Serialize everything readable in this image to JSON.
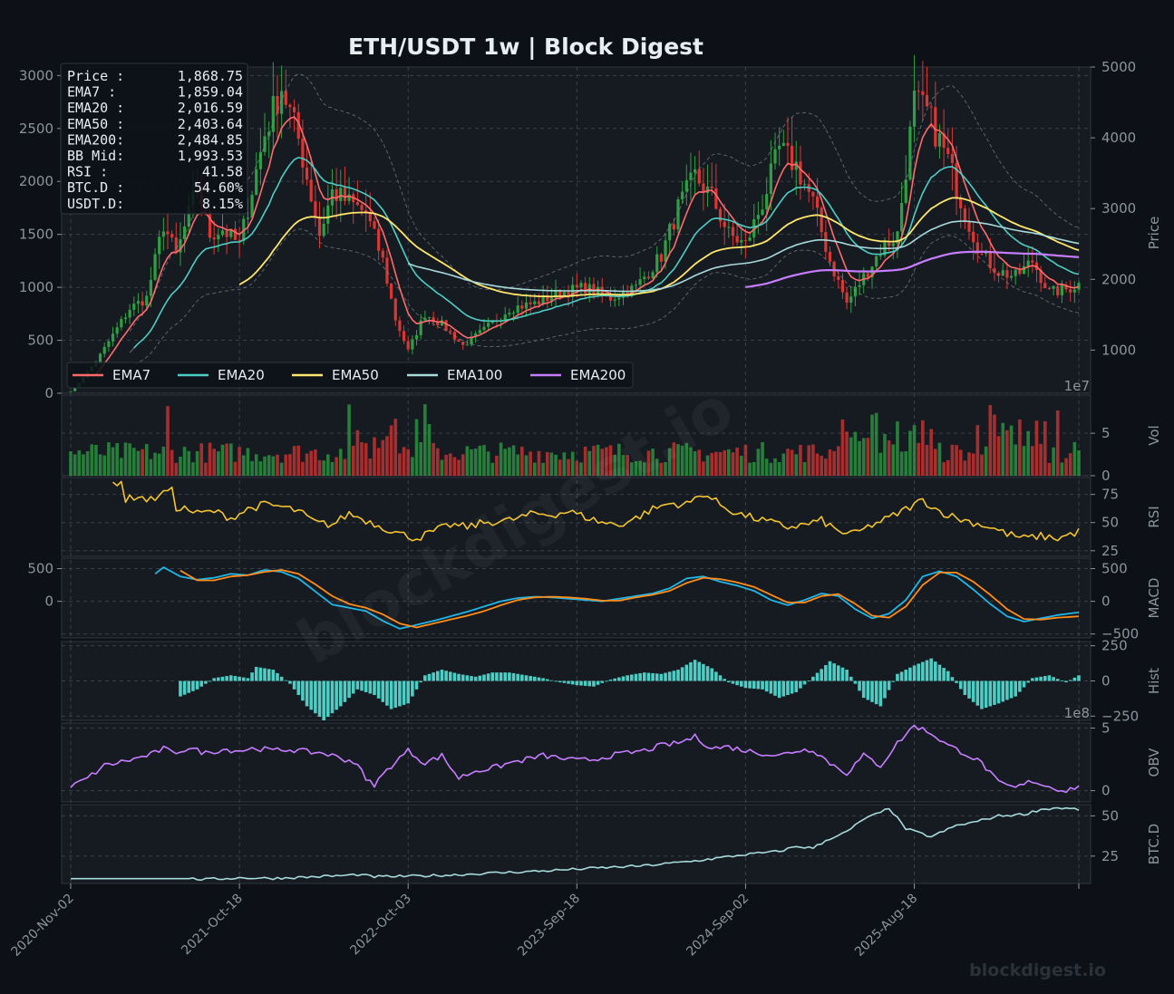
{
  "title": "ETH/USDT  1w  |  Block Digest",
  "watermark": "blockdigest.io",
  "footer_brand": "blockdigest.io",
  "colors": {
    "background": "#0d1117",
    "panel": "#161b22",
    "grid": "#3a4048",
    "text": "#e6edf3",
    "muted": "#8b949e",
    "up": "#2ea043",
    "down": "#da3633",
    "ema7": "#ff6b6b",
    "ema20": "#4ecdc4",
    "ema50": "#ffe66d",
    "ema100": "#a8dadc",
    "ema200": "#c77dff",
    "rsi": "#f4c430",
    "macd": "#1fb6e8",
    "signal": "#ff8c1a",
    "hist": "#4ecdc4",
    "obv": "#c77dff",
    "btcd": "#a8dadc"
  },
  "info_box": [
    {
      "label": "Price :",
      "value": "1,868.75"
    },
    {
      "label": "EMA7  :",
      "value": "1,859.04"
    },
    {
      "label": "EMA20 :",
      "value": "2,016.59"
    },
    {
      "label": "EMA50 :",
      "value": "2,403.64"
    },
    {
      "label": "EMA200:",
      "value": "2,484.85"
    },
    {
      "label": "BB Mid:",
      "value": "1,993.53"
    },
    {
      "label": "RSI   :",
      "value": "41.58"
    },
    {
      "label": "BTC.D :",
      "value": "54.60%"
    },
    {
      "label": "USDT.D:",
      "value": "8.15%"
    }
  ],
  "chart_data": {
    "type": "line",
    "x_ticks": [
      "2020-Nov-02",
      "2021-Oct-18",
      "2022-Oct-03",
      "2023-Sep-18",
      "2024-Sep-02",
      "2025-Aug-18"
    ],
    "legend": [
      "EMA7",
      "EMA20",
      "EMA50",
      "EMA100",
      "EMA200"
    ],
    "legend_position": "lower-left",
    "grid": true,
    "bars_total": 240,
    "panels": {
      "price": {
        "left_ticks": [
          0,
          500,
          1000,
          1500,
          2000,
          2500,
          3000
        ],
        "left_range": [
          0,
          3080
        ],
        "right_label": "Price",
        "right_ticks": [
          1000,
          2000,
          3000,
          4000,
          5000
        ],
        "right_range": [
          390,
          5000
        ],
        "exponent_label": "1e7"
      },
      "volume": {
        "label": "Vol",
        "ticks": [
          0,
          5
        ],
        "range": [
          0,
          9.5
        ],
        "unit_note": "1e7"
      },
      "rsi": {
        "label": "RSI",
        "ticks": [
          25,
          50,
          75
        ],
        "range": [
          20,
          90
        ]
      },
      "macd": {
        "label": "MACD",
        "left_ticks": [
          0,
          500
        ],
        "right_ticks": [
          -500,
          0,
          500
        ],
        "range": [
          -560,
          660
        ]
      },
      "hist": {
        "label": "Hist",
        "ticks": [
          -250,
          0,
          250
        ],
        "range": [
          -280,
          280
        ],
        "exponent_label": "1e8"
      },
      "obv": {
        "label": "OBV",
        "ticks": [
          0,
          5
        ],
        "range": [
          -0.9,
          5.4
        ]
      },
      "btcd": {
        "label": "BTC.D",
        "ticks": [
          25,
          50
        ],
        "range": [
          8,
          57
        ]
      }
    },
    "price_anchors": [
      [
        0,
        0
      ],
      [
        6,
        300
      ],
      [
        14,
        800
      ],
      [
        18,
        900
      ],
      [
        22,
        1600
      ],
      [
        25,
        1300
      ],
      [
        30,
        1950
      ],
      [
        33,
        1500
      ],
      [
        36,
        1550
      ],
      [
        40,
        1400
      ],
      [
        46,
        2450
      ],
      [
        50,
        2900
      ],
      [
        54,
        2400
      ],
      [
        59,
        1500
      ],
      [
        62,
        1900
      ],
      [
        66,
        1800
      ],
      [
        70,
        1700
      ],
      [
        74,
        1250
      ],
      [
        77,
        700
      ],
      [
        80,
        400
      ],
      [
        84,
        750
      ],
      [
        88,
        650
      ],
      [
        93,
        450
      ],
      [
        98,
        600
      ],
      [
        104,
        800
      ],
      [
        110,
        850
      ],
      [
        116,
        950
      ],
      [
        122,
        1000
      ],
      [
        128,
        900
      ],
      [
        134,
        1000
      ],
      [
        140,
        1300
      ],
      [
        144,
        1750
      ],
      [
        148,
        2050
      ],
      [
        152,
        1850
      ],
      [
        156,
        1500
      ],
      [
        160,
        1400
      ],
      [
        164,
        1800
      ],
      [
        168,
        2300
      ],
      [
        172,
        2150
      ],
      [
        176,
        1800
      ],
      [
        180,
        1250
      ],
      [
        184,
        850
      ],
      [
        188,
        1100
      ],
      [
        192,
        1350
      ],
      [
        196,
        1500
      ],
      [
        200,
        2750
      ],
      [
        203,
        2650
      ],
      [
        208,
        2200
      ],
      [
        212,
        1700
      ],
      [
        216,
        1300
      ],
      [
        220,
        1150
      ],
      [
        224,
        1100
      ],
      [
        228,
        1250
      ],
      [
        232,
        950
      ],
      [
        236,
        980
      ],
      [
        239,
        1030
      ]
    ],
    "rsi_anchors": [
      [
        10,
        85
      ],
      [
        12,
        87
      ],
      [
        13,
        70
      ],
      [
        16,
        74
      ],
      [
        18,
        70
      ],
      [
        22,
        76
      ],
      [
        24,
        78
      ],
      [
        21,
        76
      ],
      [
        20,
        72
      ],
      [
        19,
        70
      ],
      [
        20,
        74
      ],
      [
        21,
        80
      ],
      [
        22,
        82
      ],
      [
        23,
        79
      ],
      [
        24,
        60
      ],
      [
        26,
        64
      ],
      [
        30,
        58
      ],
      [
        34,
        60
      ],
      [
        38,
        54
      ],
      [
        42,
        62
      ],
      [
        46,
        66
      ],
      [
        50,
        64
      ],
      [
        54,
        60
      ],
      [
        58,
        50
      ],
      [
        62,
        48
      ],
      [
        66,
        58
      ],
      [
        70,
        52
      ],
      [
        74,
        46
      ],
      [
        78,
        40
      ],
      [
        82,
        36
      ],
      [
        86,
        42
      ],
      [
        90,
        48
      ],
      [
        94,
        46
      ],
      [
        98,
        50
      ],
      [
        104,
        52
      ],
      [
        110,
        58
      ],
      [
        114,
        57
      ],
      [
        118,
        60
      ],
      [
        122,
        55
      ],
      [
        126,
        50
      ],
      [
        130,
        48
      ],
      [
        134,
        54
      ],
      [
        138,
        62
      ],
      [
        142,
        67
      ],
      [
        146,
        66
      ],
      [
        150,
        76
      ],
      [
        154,
        66
      ],
      [
        158,
        58
      ],
      [
        162,
        54
      ],
      [
        166,
        50
      ],
      [
        170,
        46
      ],
      [
        174,
        48
      ],
      [
        178,
        52
      ],
      [
        182,
        42
      ],
      [
        186,
        40
      ],
      [
        190,
        48
      ],
      [
        194,
        54
      ],
      [
        198,
        62
      ],
      [
        202,
        70
      ],
      [
        206,
        60
      ],
      [
        210,
        54
      ],
      [
        214,
        50
      ],
      [
        218,
        46
      ],
      [
        222,
        40
      ],
      [
        226,
        36
      ],
      [
        230,
        38
      ],
      [
        234,
        36
      ],
      [
        239,
        42
      ]
    ],
    "macd_anchors": [
      [
        20,
        420
      ],
      [
        22,
        520
      ],
      [
        26,
        380
      ],
      [
        30,
        330
      ],
      [
        34,
        360
      ],
      [
        38,
        420
      ],
      [
        42,
        400
      ],
      [
        46,
        480
      ],
      [
        50,
        450
      ],
      [
        54,
        350
      ],
      [
        58,
        150
      ],
      [
        62,
        -50
      ],
      [
        66,
        -100
      ],
      [
        70,
        -150
      ],
      [
        74,
        -300
      ],
      [
        78,
        -420
      ],
      [
        82,
        -360
      ],
      [
        86,
        -300
      ],
      [
        90,
        -230
      ],
      [
        94,
        -160
      ],
      [
        98,
        -80
      ],
      [
        102,
        0
      ],
      [
        106,
        50
      ],
      [
        110,
        70
      ],
      [
        114,
        60
      ],
      [
        118,
        40
      ],
      [
        122,
        20
      ],
      [
        126,
        0
      ],
      [
        130,
        40
      ],
      [
        134,
        80
      ],
      [
        138,
        120
      ],
      [
        142,
        200
      ],
      [
        146,
        350
      ],
      [
        150,
        380
      ],
      [
        154,
        300
      ],
      [
        158,
        240
      ],
      [
        162,
        160
      ],
      [
        166,
        20
      ],
      [
        170,
        -60
      ],
      [
        174,
        20
      ],
      [
        178,
        120
      ],
      [
        182,
        80
      ],
      [
        186,
        -120
      ],
      [
        190,
        -260
      ],
      [
        194,
        -190
      ],
      [
        198,
        20
      ],
      [
        202,
        380
      ],
      [
        206,
        460
      ],
      [
        210,
        380
      ],
      [
        214,
        180
      ],
      [
        218,
        -40
      ],
      [
        222,
        -230
      ],
      [
        226,
        -310
      ],
      [
        230,
        -260
      ],
      [
        234,
        -210
      ],
      [
        239,
        -170
      ]
    ],
    "signal_anchors": [
      [
        26,
        470
      ],
      [
        30,
        320
      ],
      [
        34,
        320
      ],
      [
        38,
        380
      ],
      [
        42,
        400
      ],
      [
        46,
        450
      ],
      [
        50,
        480
      ],
      [
        54,
        420
      ],
      [
        58,
        260
      ],
      [
        62,
        80
      ],
      [
        66,
        -40
      ],
      [
        70,
        -100
      ],
      [
        74,
        -200
      ],
      [
        78,
        -340
      ],
      [
        82,
        -400
      ],
      [
        86,
        -340
      ],
      [
        90,
        -280
      ],
      [
        94,
        -220
      ],
      [
        98,
        -150
      ],
      [
        102,
        -60
      ],
      [
        106,
        20
      ],
      [
        110,
        60
      ],
      [
        114,
        70
      ],
      [
        118,
        60
      ],
      [
        122,
        40
      ],
      [
        126,
        10
      ],
      [
        130,
        10
      ],
      [
        134,
        60
      ],
      [
        138,
        100
      ],
      [
        142,
        160
      ],
      [
        146,
        280
      ],
      [
        150,
        360
      ],
      [
        154,
        340
      ],
      [
        158,
        290
      ],
      [
        162,
        220
      ],
      [
        166,
        100
      ],
      [
        170,
        -20
      ],
      [
        174,
        -20
      ],
      [
        178,
        80
      ],
      [
        182,
        110
      ],
      [
        186,
        -40
      ],
      [
        190,
        -220
      ],
      [
        194,
        -250
      ],
      [
        198,
        -80
      ],
      [
        202,
        250
      ],
      [
        206,
        440
      ],
      [
        210,
        440
      ],
      [
        214,
        300
      ],
      [
        218,
        100
      ],
      [
        222,
        -120
      ],
      [
        226,
        -270
      ],
      [
        230,
        -280
      ],
      [
        234,
        -250
      ],
      [
        239,
        -230
      ]
    ],
    "hist_anchors": [
      [
        26,
        -110
      ],
      [
        30,
        -60
      ],
      [
        34,
        20
      ],
      [
        38,
        40
      ],
      [
        42,
        20
      ],
      [
        44,
        100
      ],
      [
        48,
        80
      ],
      [
        52,
        -20
      ],
      [
        56,
        -180
      ],
      [
        60,
        -280
      ],
      [
        64,
        -180
      ],
      [
        68,
        -60
      ],
      [
        72,
        -100
      ],
      [
        76,
        -200
      ],
      [
        80,
        -160
      ],
      [
        84,
        40
      ],
      [
        88,
        80
      ],
      [
        92,
        50
      ],
      [
        96,
        30
      ],
      [
        100,
        60
      ],
      [
        104,
        60
      ],
      [
        108,
        40
      ],
      [
        112,
        20
      ],
      [
        116,
        -10
      ],
      [
        120,
        -30
      ],
      [
        124,
        -40
      ],
      [
        128,
        10
      ],
      [
        132,
        40
      ],
      [
        136,
        60
      ],
      [
        140,
        50
      ],
      [
        144,
        80
      ],
      [
        148,
        150
      ],
      [
        152,
        90
      ],
      [
        156,
        -10
      ],
      [
        160,
        -50
      ],
      [
        164,
        -60
      ],
      [
        168,
        -120
      ],
      [
        172,
        -80
      ],
      [
        176,
        30
      ],
      [
        180,
        140
      ],
      [
        184,
        80
      ],
      [
        188,
        -120
      ],
      [
        192,
        -180
      ],
      [
        196,
        50
      ],
      [
        200,
        110
      ],
      [
        204,
        160
      ],
      [
        208,
        70
      ],
      [
        212,
        -100
      ],
      [
        216,
        -200
      ],
      [
        220,
        -160
      ],
      [
        224,
        -110
      ],
      [
        228,
        20
      ],
      [
        232,
        40
      ],
      [
        236,
        -10
      ],
      [
        239,
        40
      ]
    ],
    "obv_anchors": [
      [
        0,
        0.3
      ],
      [
        4,
        1.0
      ],
      [
        8,
        2.0
      ],
      [
        12,
        2.3
      ],
      [
        16,
        2.6
      ],
      [
        20,
        3.0
      ],
      [
        22,
        3.4
      ],
      [
        24,
        3.0
      ],
      [
        28,
        3.4
      ],
      [
        32,
        3.0
      ],
      [
        36,
        3.3
      ],
      [
        40,
        3.2
      ],
      [
        44,
        3.4
      ],
      [
        48,
        3.2
      ],
      [
        52,
        3.3
      ],
      [
        56,
        3.1
      ],
      [
        60,
        3.0
      ],
      [
        64,
        2.6
      ],
      [
        68,
        2.2
      ],
      [
        70,
        0.8
      ],
      [
        72,
        0.5
      ],
      [
        76,
        2.0
      ],
      [
        80,
        3.2
      ],
      [
        84,
        2.2
      ],
      [
        88,
        2.8
      ],
      [
        92,
        1.0
      ],
      [
        96,
        1.6
      ],
      [
        100,
        1.8
      ],
      [
        104,
        2.2
      ],
      [
        108,
        2.5
      ],
      [
        112,
        2.8
      ],
      [
        116,
        2.6
      ],
      [
        120,
        2.4
      ],
      [
        124,
        2.5
      ],
      [
        128,
        2.8
      ],
      [
        132,
        3.0
      ],
      [
        136,
        3.2
      ],
      [
        140,
        3.6
      ],
      [
        144,
        3.8
      ],
      [
        148,
        4.3
      ],
      [
        152,
        3.4
      ],
      [
        156,
        3.5
      ],
      [
        160,
        3.2
      ],
      [
        164,
        3.0
      ],
      [
        168,
        2.8
      ],
      [
        172,
        3.2
      ],
      [
        176,
        3.3
      ],
      [
        180,
        2.2
      ],
      [
        184,
        1.4
      ],
      [
        188,
        2.8
      ],
      [
        192,
        2.0
      ],
      [
        196,
        3.8
      ],
      [
        200,
        5.2
      ],
      [
        204,
        4.6
      ],
      [
        208,
        3.6
      ],
      [
        212,
        3.0
      ],
      [
        216,
        2.2
      ],
      [
        220,
        0.6
      ],
      [
        224,
        0.2
      ],
      [
        228,
        0.8
      ],
      [
        232,
        0.3
      ],
      [
        236,
        0.0
      ],
      [
        239,
        0.4
      ]
    ],
    "btcd_anchors": [
      [
        0,
        11
      ],
      [
        28,
        11
      ],
      [
        32,
        10.5
      ],
      [
        40,
        11.5
      ],
      [
        48,
        11.2
      ],
      [
        56,
        12
      ],
      [
        64,
        12.8
      ],
      [
        68,
        13.5
      ],
      [
        72,
        12.2
      ],
      [
        80,
        12.5
      ],
      [
        90,
        13.2
      ],
      [
        100,
        14.5
      ],
      [
        112,
        15.8
      ],
      [
        124,
        17.5
      ],
      [
        136,
        19
      ],
      [
        148,
        22
      ],
      [
        160,
        26
      ],
      [
        168,
        28
      ],
      [
        172,
        31
      ],
      [
        176,
        30
      ],
      [
        180,
        36
      ],
      [
        184,
        40
      ],
      [
        188,
        48
      ],
      [
        192,
        52
      ],
      [
        194,
        55
      ],
      [
        198,
        42
      ],
      [
        204,
        37
      ],
      [
        210,
        44
      ],
      [
        214,
        46
      ],
      [
        220,
        50
      ],
      [
        226,
        51
      ],
      [
        230,
        54
      ],
      [
        234,
        55
      ],
      [
        239,
        54
      ]
    ],
    "last_price": 1868.75,
    "last_rsi": 41.58,
    "btc_dominance": 54.6,
    "usdt_dominance": 8.15
  }
}
